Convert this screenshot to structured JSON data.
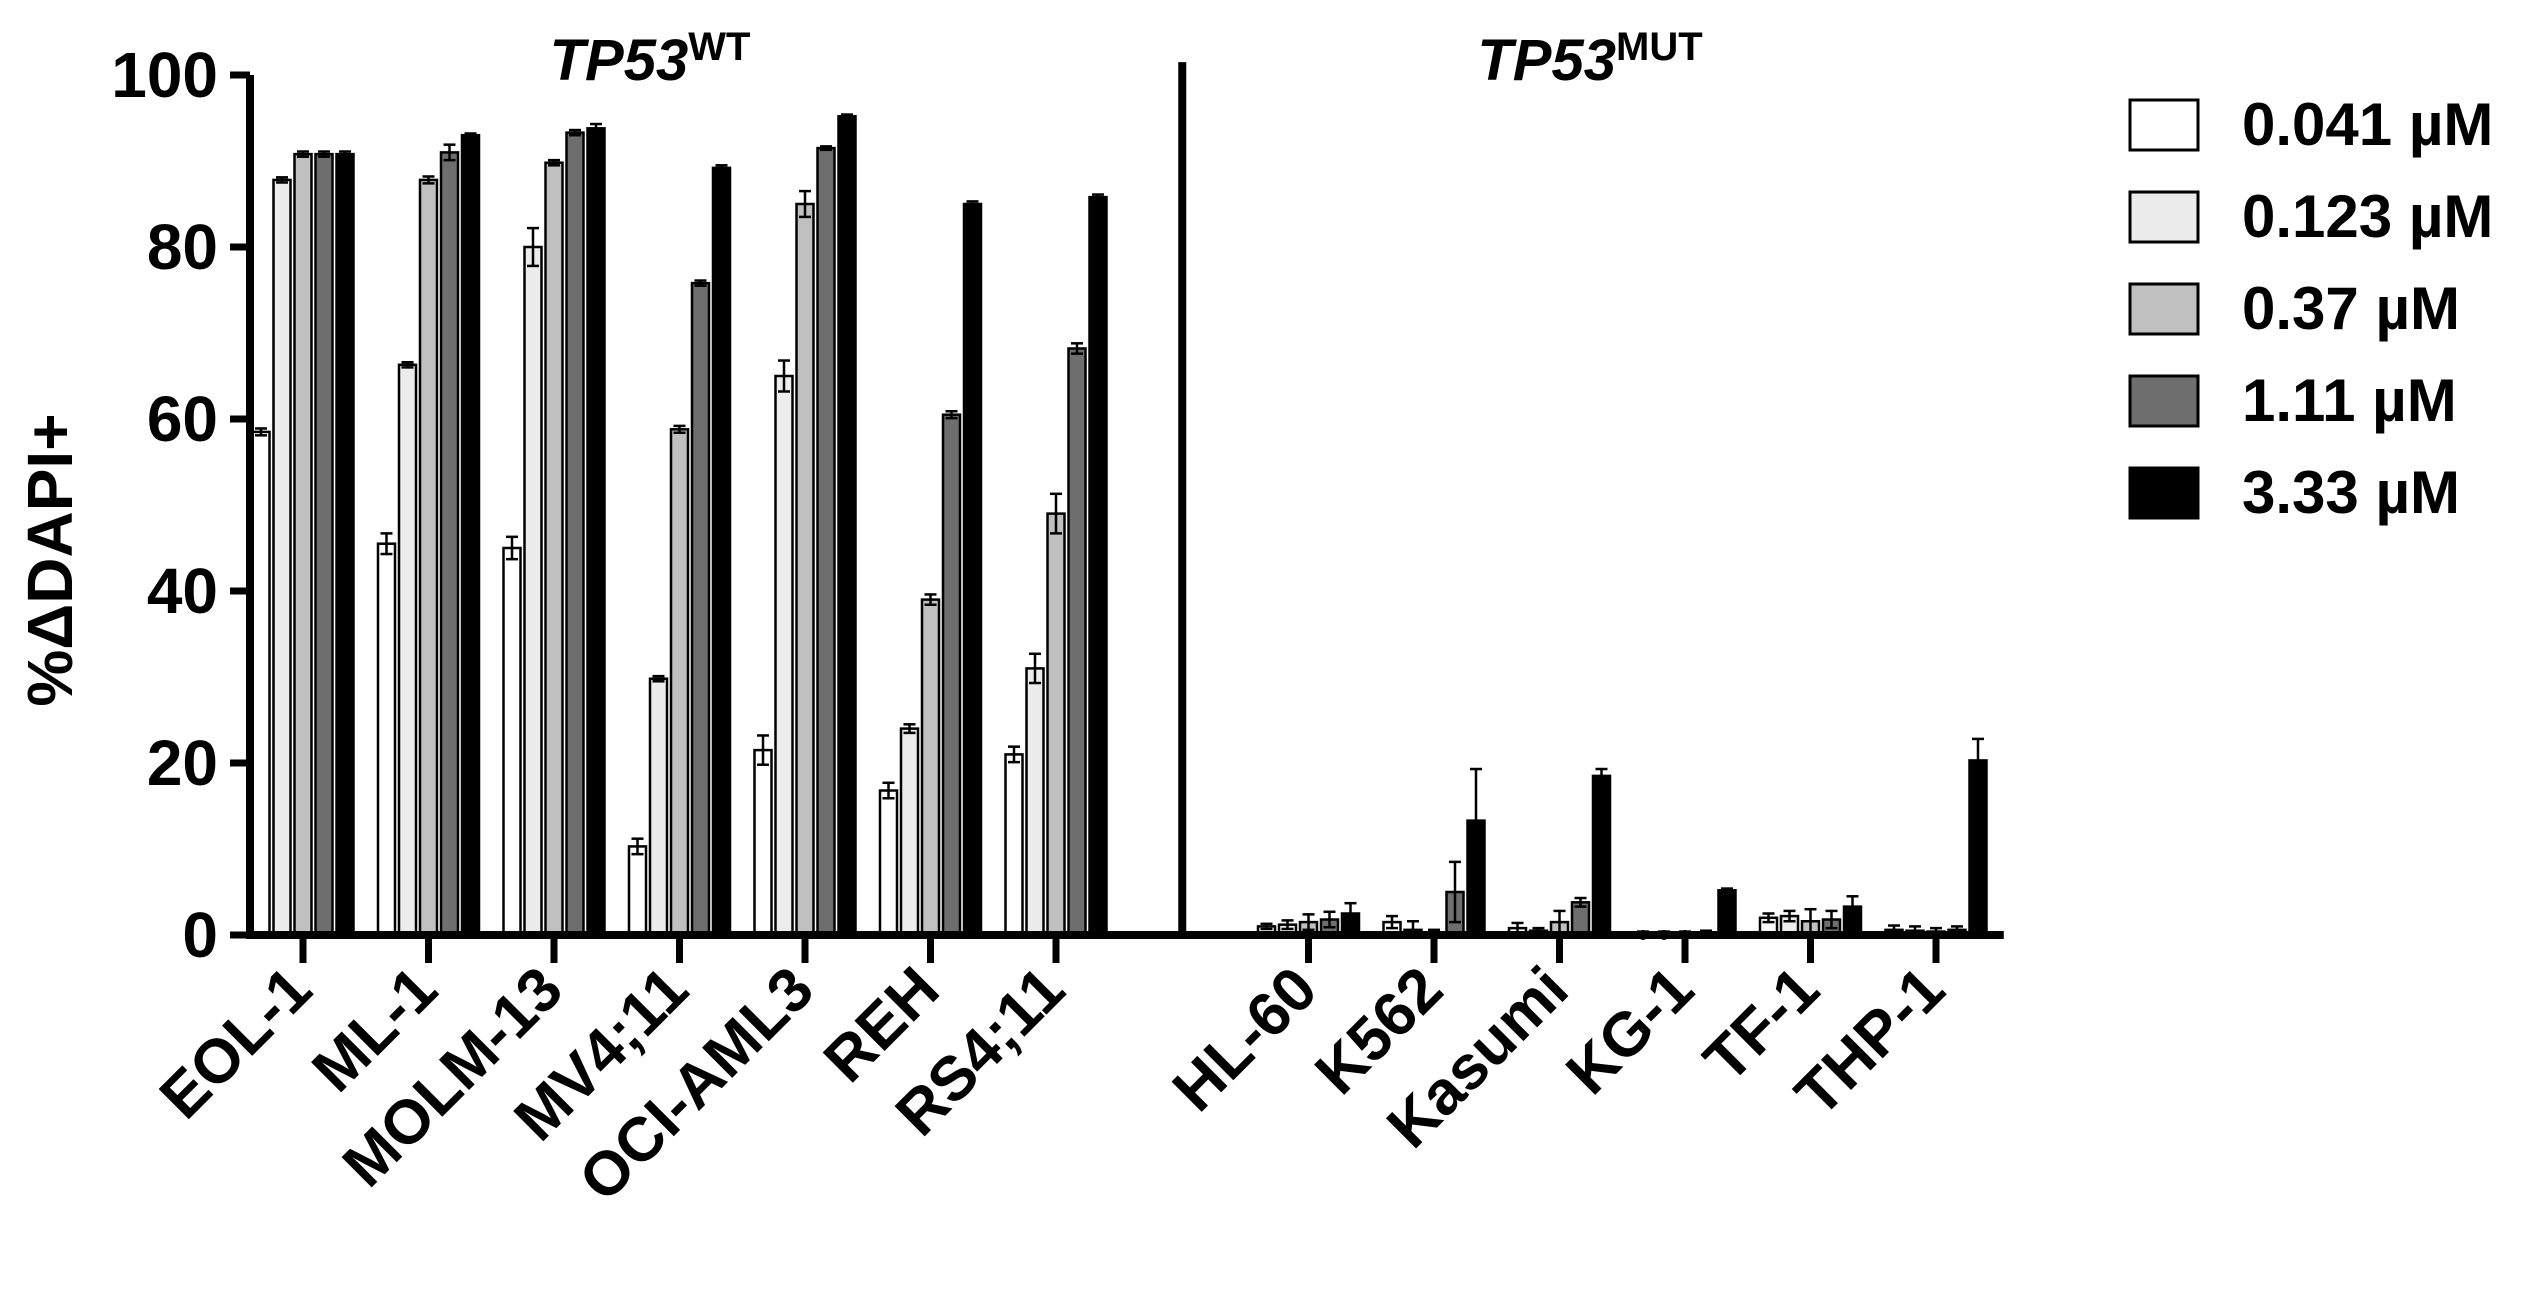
{
  "chart_data": {
    "type": "bar",
    "ylabel": "%ΔDAPI+",
    "ylim": [
      0,
      100
    ],
    "yticks": [
      0,
      20,
      40,
      60,
      80,
      100
    ],
    "groups": [
      {
        "label_main": "TP53",
        "label_sup": "WT"
      },
      {
        "label_main": "TP53",
        "label_sup": "MUT"
      }
    ],
    "categories": [
      "EOL-1",
      "ML-1",
      "MOLM-13",
      "MV4;11",
      "OCI-AML3",
      "REH",
      "RS4;11",
      "HL-60",
      "K562",
      "Kasumi",
      "KG-1",
      "TF-1",
      "THP-1"
    ],
    "category_group": [
      0,
      0,
      0,
      0,
      0,
      0,
      0,
      1,
      1,
      1,
      1,
      1,
      1
    ],
    "series": [
      {
        "name": "0.041 µM",
        "color": "#ffffff",
        "values": [
          58.5,
          45.5,
          45.0,
          10.3,
          21.5,
          16.8,
          21.0,
          1.0,
          1.5,
          0.8,
          0.2,
          2.0,
          0.6
        ],
        "errors": [
          0.4,
          1.2,
          1.3,
          0.9,
          1.7,
          0.9,
          0.9,
          0.3,
          0.7,
          0.6,
          0.2,
          0.5,
          0.5
        ]
      },
      {
        "name": "0.123 µM",
        "color": "#ececec",
        "values": [
          87.8,
          66.3,
          80.0,
          29.8,
          65.0,
          24.0,
          31.0,
          1.2,
          0.6,
          0.5,
          0.2,
          2.2,
          0.5
        ],
        "errors": [
          0.3,
          0.3,
          2.2,
          0.3,
          1.8,
          0.5,
          1.7,
          0.5,
          1.0,
          0.3,
          0.2,
          0.6,
          0.5
        ]
      },
      {
        "name": "0.37 µM",
        "color": "#c0c0c0",
        "values": [
          90.8,
          87.8,
          89.8,
          58.8,
          85.0,
          39.0,
          49.0,
          1.5,
          0.3,
          1.5,
          0.2,
          1.6,
          0.4
        ],
        "errors": [
          0.3,
          0.4,
          0.3,
          0.4,
          1.5,
          0.6,
          2.3,
          0.9,
          0.3,
          1.3,
          0.2,
          1.4,
          0.4
        ]
      },
      {
        "name": "1.11 µM",
        "color": "#6e6e6e",
        "values": [
          90.8,
          91.0,
          93.3,
          75.8,
          91.5,
          60.5,
          68.2,
          1.8,
          5.0,
          3.8,
          0.3,
          1.8,
          0.6
        ],
        "errors": [
          0.3,
          0.9,
          0.3,
          0.3,
          0.2,
          0.4,
          0.6,
          0.9,
          3.5,
          0.5,
          0.2,
          1.0,
          0.4
        ]
      },
      {
        "name": "3.33 µM",
        "color": "#000000",
        "values": [
          90.8,
          93.0,
          93.8,
          89.2,
          95.2,
          85.0,
          85.8,
          2.5,
          13.3,
          18.5,
          5.2,
          3.3,
          20.3
        ],
        "errors": [
          0.3,
          0.2,
          0.5,
          0.3,
          0.2,
          0.3,
          0.3,
          1.2,
          6.0,
          0.8,
          0.2,
          1.2,
          2.5
        ]
      }
    ],
    "legend_position": "right",
    "grid": false
  }
}
